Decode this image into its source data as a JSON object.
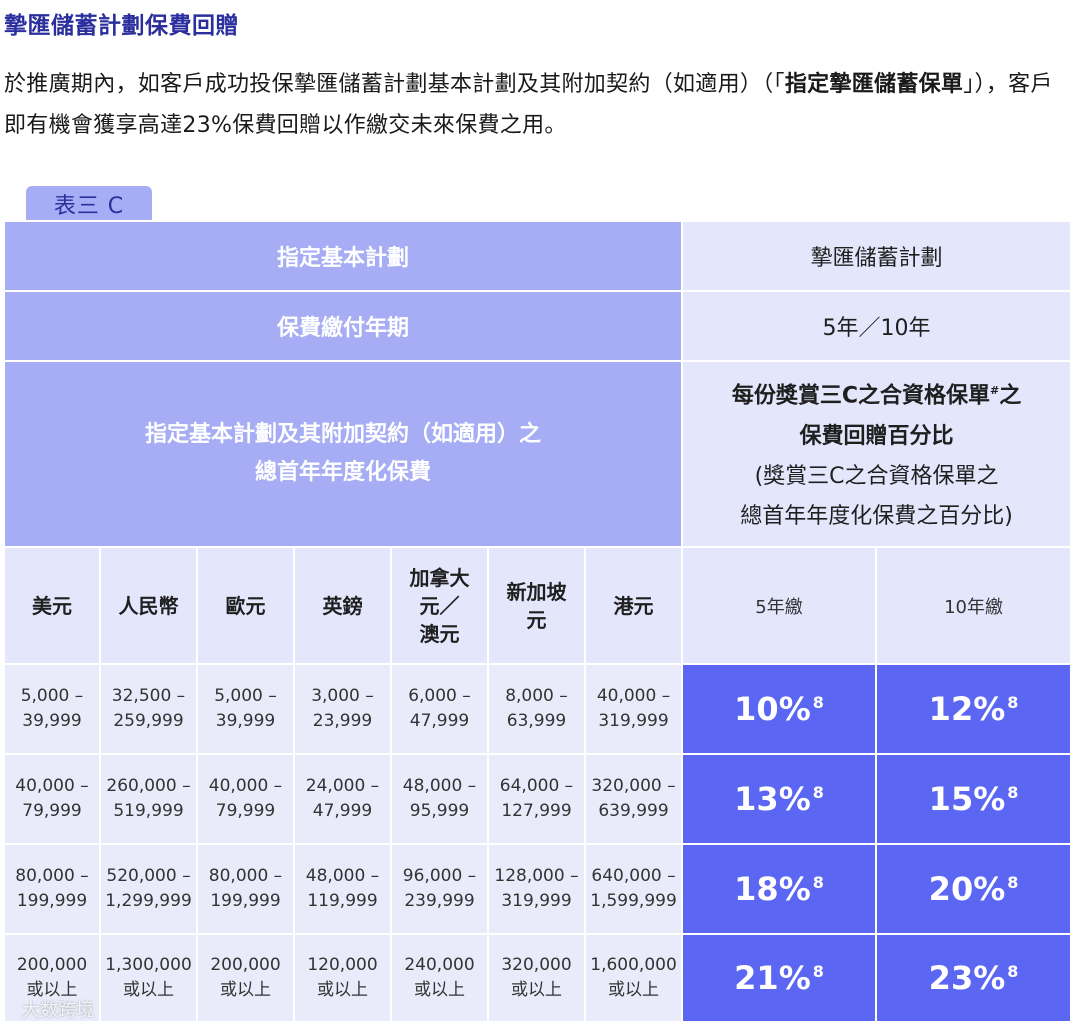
{
  "heading": "摯匯儲蓄計劃保費回贈",
  "intro": {
    "part1": "於推廣期內，如客戶成功投保摯匯儲蓄計劃基本計劃及其附加契約（如適用）（「",
    "bold": "指定摯匯儲蓄保單",
    "part2": "」），客戶即有機會獲享高達23%保費回贈以作繳交未來保費之用。"
  },
  "table": {
    "tab_label": "表三 C",
    "row1": {
      "left": "指定基本計劃",
      "right": "摯匯儲蓄計劃"
    },
    "row2": {
      "left": "保費繳付年期",
      "right": "5年／10年"
    },
    "row3": {
      "left_line1": "指定基本計劃及其附加契約（如適用）之",
      "left_line2": "總首年年度化保費",
      "right_line1": "每份獎賞三C之合資格保單",
      "right_hash": "#",
      "right_line1_end": "之",
      "right_line2": "保費回贈百分比",
      "right_line3": "(獎賞三C之合資格保單之",
      "right_line4": "總首年年度化保費之百分比)"
    },
    "currencies": [
      {
        "line1": "美元",
        "line2": "",
        "line3": ""
      },
      {
        "line1": "人民幣",
        "line2": "",
        "line3": ""
      },
      {
        "line1": "歐元",
        "line2": "",
        "line3": ""
      },
      {
        "line1": "英鎊",
        "line2": "",
        "line3": ""
      },
      {
        "line1": "加拿大",
        "line2": "元／",
        "line3": "澳元"
      },
      {
        "line1": "新加坡",
        "line2": "元",
        "line3": ""
      },
      {
        "line1": "港元",
        "line2": "",
        "line3": ""
      }
    ],
    "terms": [
      "5年繳",
      "10年繳"
    ],
    "rows": [
      {
        "ranges": [
          [
            "5,000 –",
            "39,999"
          ],
          [
            "32,500 –",
            "259,999"
          ],
          [
            "5,000 –",
            "39,999"
          ],
          [
            "3,000 –",
            "23,999"
          ],
          [
            "6,000 –",
            "47,999"
          ],
          [
            "8,000 –",
            "63,999"
          ],
          [
            "40,000 –",
            "319,999"
          ]
        ],
        "rebate_5": "10%",
        "rebate_10": "12%",
        "note": "8"
      },
      {
        "ranges": [
          [
            "40,000 –",
            "79,999"
          ],
          [
            "260,000 –",
            "519,999"
          ],
          [
            "40,000 –",
            "79,999"
          ],
          [
            "24,000 –",
            "47,999"
          ],
          [
            "48,000 –",
            "95,999"
          ],
          [
            "64,000 –",
            "127,999"
          ],
          [
            "320,000 –",
            "639,999"
          ]
        ],
        "rebate_5": "13%",
        "rebate_10": "15%",
        "note": "8"
      },
      {
        "ranges": [
          [
            "80,000 –",
            "199,999"
          ],
          [
            "520,000 –",
            "1,299,999"
          ],
          [
            "80,000 –",
            "199,999"
          ],
          [
            "48,000 –",
            "119,999"
          ],
          [
            "96,000 –",
            "239,999"
          ],
          [
            "128,000 –",
            "319,999"
          ],
          [
            "640,000 –",
            "1,599,999"
          ]
        ],
        "rebate_5": "18%",
        "rebate_10": "20%",
        "note": "8"
      },
      {
        "ranges": [
          [
            "200,000",
            "或以上"
          ],
          [
            "1,300,000",
            "或以上"
          ],
          [
            "200,000",
            "或以上"
          ],
          [
            "120,000",
            "或以上"
          ],
          [
            "240,000",
            "或以上"
          ],
          [
            "320,000",
            "或以上"
          ],
          [
            "1,600,000",
            "或以上"
          ]
        ],
        "rebate_5": "21%",
        "rebate_10": "23%",
        "note": "8"
      }
    ]
  },
  "watermark": "大数跨境"
}
